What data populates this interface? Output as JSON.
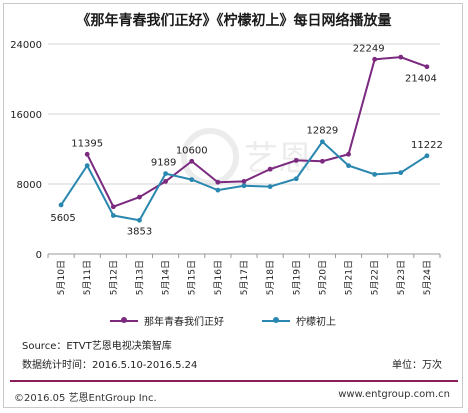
{
  "title": "《那年青春我们正好》《柠檬初上》每日网络播放量",
  "chart_data": {
    "type": "line",
    "categories": [
      "5月10日",
      "5月11日",
      "5月12日",
      "5月13日",
      "5月14日",
      "5月15日",
      "5月16日",
      "5月17日",
      "5月18日",
      "5月19日",
      "5月20日",
      "5月21日",
      "5月22日",
      "5月23日",
      "5月24日"
    ],
    "ylim": [
      0,
      24000
    ],
    "yticks": [
      0,
      8000,
      16000,
      24000
    ],
    "series": [
      {
        "name": "那年青春我们正好",
        "color": "#7b2a7f",
        "values": [
          null,
          11395,
          5400,
          6500,
          8300,
          10600,
          8200,
          8300,
          9700,
          10700,
          10600,
          11400,
          22249,
          22500,
          21404
        ]
      },
      {
        "name": "柠檬初上",
        "color": "#2a87b0",
        "values": [
          5605,
          10100,
          4400,
          3853,
          9189,
          8500,
          7300,
          7800,
          7700,
          8600,
          12829,
          10100,
          9100,
          9300,
          11222
        ]
      }
    ],
    "data_labels": [
      {
        "series": 0,
        "index": 1,
        "text": "11395"
      },
      {
        "series": 1,
        "index": 0,
        "text": "5605"
      },
      {
        "series": 1,
        "index": 3,
        "text": "3853"
      },
      {
        "series": 1,
        "index": 4,
        "text": "9189"
      },
      {
        "series": 0,
        "index": 5,
        "text": "10600"
      },
      {
        "series": 1,
        "index": 10,
        "text": "12829"
      },
      {
        "series": 0,
        "index": 12,
        "text": "22249"
      },
      {
        "series": 0,
        "index": 14,
        "text": "21404"
      },
      {
        "series": 1,
        "index": 14,
        "text": "11222"
      }
    ]
  },
  "source": "Source：ETVT艺恩电视决策智库",
  "period": "数据统计时间：2016.5.10-2016.5.24",
  "unit": "单位：万次",
  "footer_left": "©2016.05 艺恩EntGroup Inc.",
  "footer_right": "www.entgroup.com.cn",
  "watermark": "艺恩"
}
